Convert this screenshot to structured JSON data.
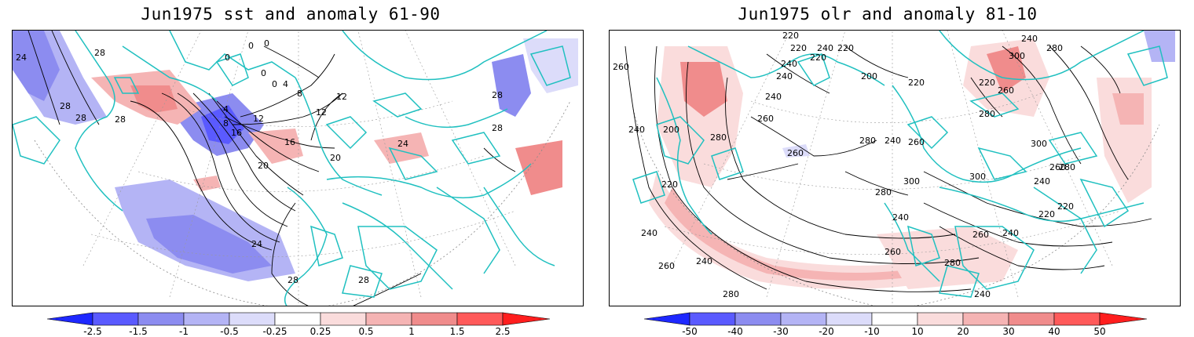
{
  "panels": [
    {
      "title": "Jun1975 sst and anomaly 61-90",
      "contour_labels": [
        "24",
        "28",
        "28",
        "28",
        "28",
        "0",
        "0",
        "0",
        "0",
        "0",
        "4",
        "4",
        "8",
        "8",
        "12",
        "12",
        "12",
        "16",
        "16",
        "20",
        "20",
        "24",
        "24",
        "28",
        "28",
        "28",
        "28"
      ],
      "colorbar_ticks": [
        "-2.5",
        "-1.5",
        "-1",
        "-0.5",
        "-0.25",
        "0.25",
        "0.5",
        "1",
        "1.5",
        "2.5"
      ]
    },
    {
      "title": "Jun1975 olr and anomaly 81-10",
      "contour_labels": [
        "220",
        "220",
        "220",
        "220",
        "240",
        "240",
        "240",
        "260",
        "260",
        "280",
        "200",
        "200",
        "240",
        "240",
        "260",
        "280",
        "300",
        "300",
        "260",
        "280",
        "240",
        "220",
        "260",
        "280",
        "220",
        "240",
        "240",
        "260",
        "280",
        "300",
        "300",
        "260",
        "280",
        "220",
        "240",
        "240",
        "220",
        "260",
        "280",
        "240",
        "240",
        "220",
        "260",
        "240",
        "280"
      ],
      "colorbar_ticks": [
        "-50",
        "-40",
        "-30",
        "-20",
        "-10",
        "10",
        "20",
        "30",
        "40",
        "50"
      ]
    }
  ],
  "colors": {
    "coast": "#20c0c0",
    "neg": [
      "#1e28ff",
      "#5a5aff",
      "#8c8cf0",
      "#b4b4f5",
      "#dcdcfa"
    ],
    "pos": [
      "#fadcdc",
      "#f5b4b4",
      "#f08c8c",
      "#ff5a5a",
      "#ff1e1e"
    ]
  }
}
